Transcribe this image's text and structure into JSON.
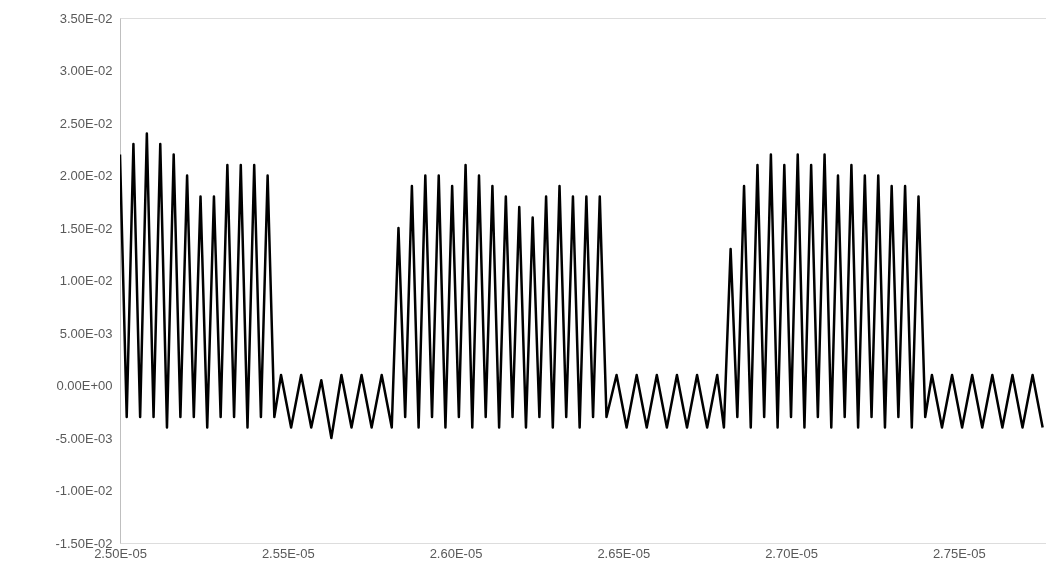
{
  "chart_data": {
    "type": "line",
    "xlim": [
      2.5e-05,
      2.776e-05
    ],
    "ylim": [
      -0.015,
      0.035
    ],
    "xticks": [
      {
        "value": 2.5e-05,
        "label": "2.50E-05"
      },
      {
        "value": 2.55e-05,
        "label": "2.55E-05"
      },
      {
        "value": 2.6e-05,
        "label": "2.60E-05"
      },
      {
        "value": 2.65e-05,
        "label": "2.65E-05"
      },
      {
        "value": 2.7e-05,
        "label": "2.70E-05"
      },
      {
        "value": 2.75e-05,
        "label": "2.75E-05"
      }
    ],
    "yticks": [
      {
        "value": -0.015,
        "label": "-1.50E-02"
      },
      {
        "value": -0.01,
        "label": "-1.00E-02"
      },
      {
        "value": -0.005,
        "label": "-5.00E-03"
      },
      {
        "value": 0,
        "label": "0.00E+00"
      },
      {
        "value": 0.005,
        "label": "5.00E-03"
      },
      {
        "value": 0.01,
        "label": "1.00E-02"
      },
      {
        "value": 0.015,
        "label": "1.50E-02"
      },
      {
        "value": 0.02,
        "label": "2.00E-02"
      },
      {
        "value": 0.025,
        "label": "2.50E-02"
      },
      {
        "value": 0.03,
        "label": "3.00E-02"
      },
      {
        "value": 0.035,
        "label": "3.50E-02"
      }
    ],
    "grid": false,
    "marker": "none",
    "line_style": "solid",
    "series": [
      {
        "color": "#000000",
        "x": [
          2.5e-05,
          2.502e-05,
          2.504e-05,
          2.506e-05,
          2.508e-05,
          2.51e-05,
          2.512e-05,
          2.514e-05,
          2.516e-05,
          2.518e-05,
          2.52e-05,
          2.522e-05,
          2.524e-05,
          2.526e-05,
          2.528e-05,
          2.53e-05,
          2.532e-05,
          2.534e-05,
          2.536e-05,
          2.538e-05,
          2.54e-05,
          2.542e-05,
          2.544e-05,
          2.546e-05,
          2.548e-05,
          2.551e-05,
          2.554e-05,
          2.557e-05,
          2.56e-05,
          2.563e-05,
          2.566e-05,
          2.569e-05,
          2.572e-05,
          2.575e-05,
          2.578e-05,
          2.581e-05,
          2.583e-05,
          2.585e-05,
          2.587e-05,
          2.589e-05,
          2.591e-05,
          2.593e-05,
          2.595e-05,
          2.597e-05,
          2.599e-05,
          2.601e-05,
          2.603e-05,
          2.605e-05,
          2.607e-05,
          2.609e-05,
          2.611e-05,
          2.613e-05,
          2.615e-05,
          2.617e-05,
          2.619e-05,
          2.621e-05,
          2.623e-05,
          2.625e-05,
          2.627e-05,
          2.629e-05,
          2.631e-05,
          2.633e-05,
          2.635e-05,
          2.637e-05,
          2.639e-05,
          2.641e-05,
          2.643e-05,
          2.645e-05,
          2.648e-05,
          2.651e-05,
          2.654e-05,
          2.657e-05,
          2.66e-05,
          2.663e-05,
          2.666e-05,
          2.669e-05,
          2.672e-05,
          2.675e-05,
          2.678e-05,
          2.68e-05,
          2.682e-05,
          2.684e-05,
          2.686e-05,
          2.688e-05,
          2.69e-05,
          2.692e-05,
          2.694e-05,
          2.696e-05,
          2.698e-05,
          2.7e-05,
          2.702e-05,
          2.704e-05,
          2.706e-05,
          2.708e-05,
          2.71e-05,
          2.712e-05,
          2.714e-05,
          2.716e-05,
          2.718e-05,
          2.72e-05,
          2.722e-05,
          2.724e-05,
          2.726e-05,
          2.728e-05,
          2.73e-05,
          2.732e-05,
          2.734e-05,
          2.736e-05,
          2.738e-05,
          2.74e-05,
          2.742e-05,
          2.745e-05,
          2.748e-05,
          2.751e-05,
          2.754e-05,
          2.757e-05,
          2.76e-05,
          2.763e-05,
          2.766e-05,
          2.769e-05,
          2.772e-05,
          2.775e-05
        ],
        "values": [
          0.022,
          -0.003,
          0.023,
          -0.003,
          0.024,
          -0.003,
          0.023,
          -0.004,
          0.022,
          -0.003,
          0.02,
          -0.003,
          0.018,
          -0.004,
          0.018,
          -0.003,
          0.021,
          -0.003,
          0.021,
          -0.004,
          0.021,
          -0.003,
          0.02,
          -0.003,
          0.001,
          -0.004,
          0.001,
          -0.004,
          0.0005,
          -0.005,
          0.001,
          -0.004,
          0.001,
          -0.004,
          0.001,
          -0.004,
          0.015,
          -0.003,
          0.019,
          -0.004,
          0.02,
          -0.003,
          0.02,
          -0.004,
          0.019,
          -0.003,
          0.021,
          -0.004,
          0.02,
          -0.003,
          0.019,
          -0.004,
          0.018,
          -0.003,
          0.017,
          -0.004,
          0.016,
          -0.003,
          0.018,
          -0.004,
          0.019,
          -0.003,
          0.018,
          -0.004,
          0.018,
          -0.003,
          0.018,
          -0.003,
          0.001,
          -0.004,
          0.001,
          -0.004,
          0.001,
          -0.004,
          0.001,
          -0.004,
          0.001,
          -0.004,
          0.001,
          -0.004,
          0.013,
          -0.003,
          0.019,
          -0.004,
          0.021,
          -0.003,
          0.022,
          -0.004,
          0.021,
          -0.003,
          0.022,
          -0.004,
          0.021,
          -0.003,
          0.022,
          -0.004,
          0.02,
          -0.003,
          0.021,
          -0.004,
          0.02,
          -0.003,
          0.02,
          -0.004,
          0.019,
          -0.003,
          0.019,
          -0.004,
          0.018,
          -0.003,
          0.001,
          -0.004,
          0.001,
          -0.004,
          0.001,
          -0.004,
          0.001,
          -0.004,
          0.001,
          -0.004,
          0.001,
          -0.004
        ]
      }
    ]
  }
}
